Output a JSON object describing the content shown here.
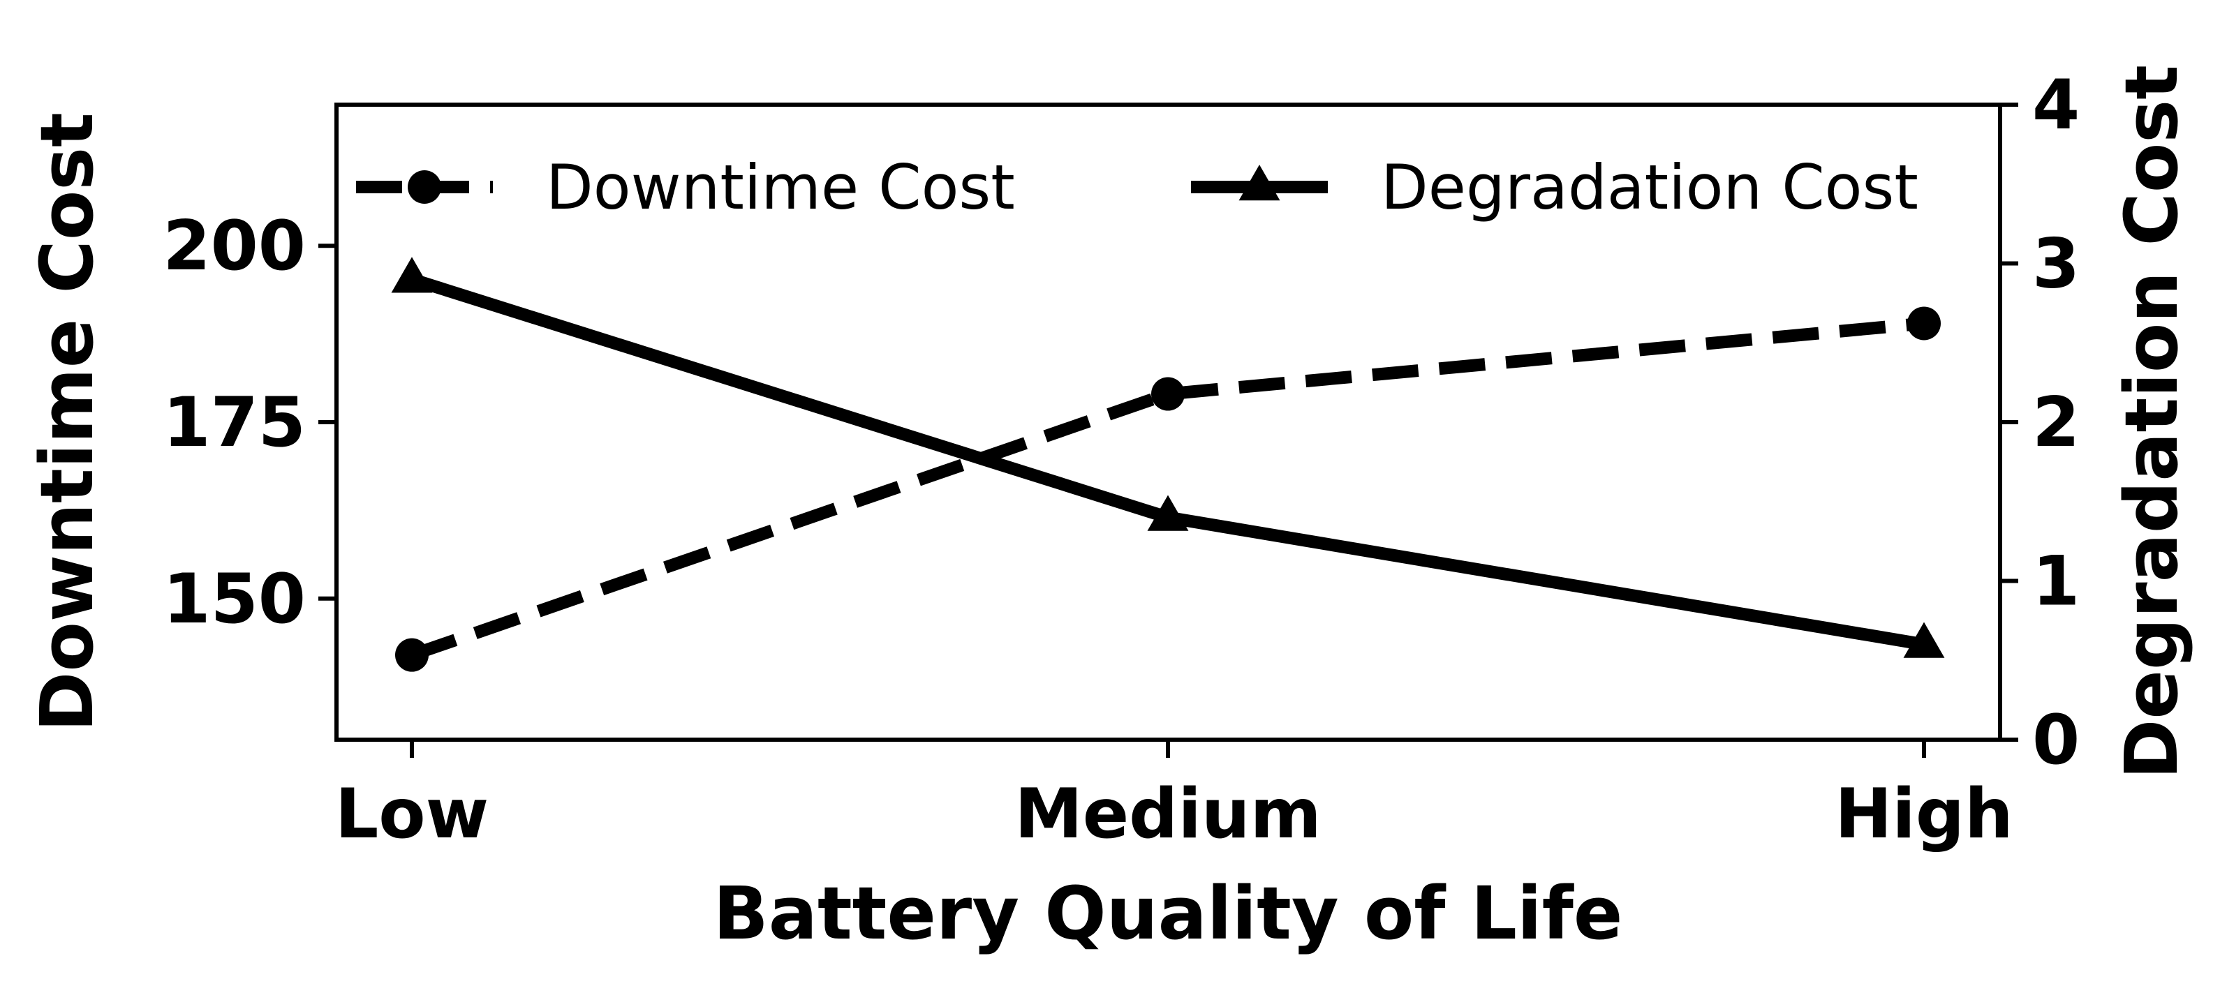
{
  "chart_data": {
    "type": "line",
    "categories": [
      "Low",
      "Medium",
      "High"
    ],
    "xlabel": "Battery Quality of Life",
    "ylabel_left": "Downtime Cost",
    "ylabel_right": "Degradation Cost",
    "ylim_left": [
      130,
      220
    ],
    "ylim_right": [
      0,
      4
    ],
    "yticks_left": [
      "150",
      "175",
      "200"
    ],
    "yticks_right": [
      "0",
      "1",
      "2",
      "3",
      "4"
    ],
    "grid": false,
    "legend_position": "top",
    "series": [
      {
        "name": "Downtime Cost",
        "axis": "left",
        "line_style": "dashed",
        "marker": "circle",
        "values": [
          142,
          179,
          189
        ]
      },
      {
        "name": "Degradation Cost",
        "axis": "right",
        "line_style": "solid",
        "marker": "triangle",
        "values": [
          2.9,
          1.4,
          0.6
        ]
      }
    ]
  }
}
